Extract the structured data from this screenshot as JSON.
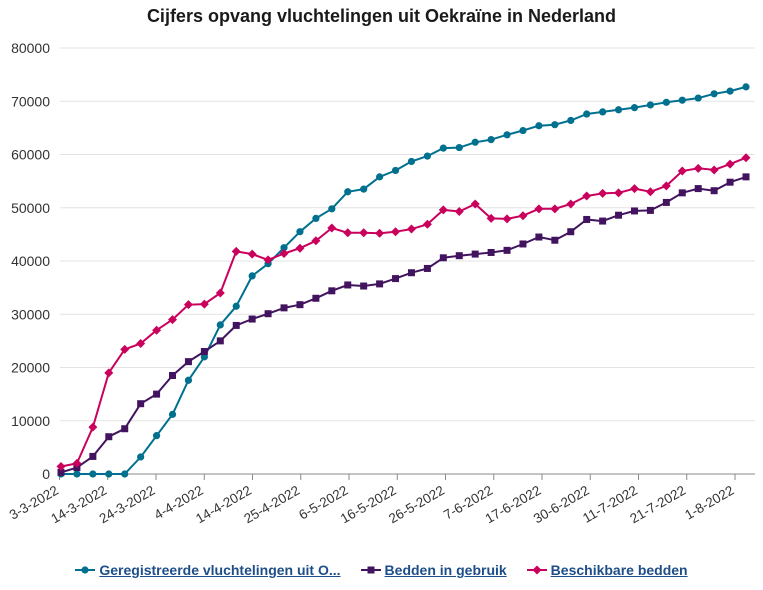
{
  "chart_data": {
    "type": "line",
    "title": "Cijfers opvang vluchtelingen uit Oekraïne in Nederland",
    "xlabel": "",
    "ylabel": "",
    "ylim": [
      0,
      80000
    ],
    "y_ticks": [
      0,
      10000,
      20000,
      30000,
      40000,
      50000,
      60000,
      70000,
      80000
    ],
    "x_tick_labels": [
      "3-3-2022",
      "14-3-2022",
      "24-3-2022",
      "4-4-2022",
      "14-4-2022",
      "25-4-2022",
      "6-5-2022",
      "16-5-2022",
      "26-5-2022",
      "7-6-2022",
      "17-6-2022",
      "30-6-2022",
      "11-7-2022",
      "21-7-2022",
      "1-8-2022"
    ],
    "grid": "horizontal",
    "legend_position": "bottom",
    "series": [
      {
        "name": "Geregistreerde vluchtelingen uit O...",
        "color": "#00708f",
        "marker": "circle",
        "values": [
          0,
          0,
          0,
          0,
          0,
          3200,
          7200,
          11200,
          17600,
          22000,
          28000,
          31500,
          37200,
          39500,
          42500,
          45500,
          48000,
          49800,
          53000,
          53500,
          55800,
          57000,
          58700,
          59700,
          61200,
          61300,
          62300,
          62800,
          63700,
          64500,
          65400,
          65600,
          66400,
          67600,
          68000,
          68400,
          68800,
          69300,
          69800,
          70200,
          70600,
          71400,
          71900,
          72700
        ]
      },
      {
        "name": "Bedden in gebruik",
        "color": "#42145f",
        "marker": "square",
        "values": [
          300,
          1200,
          3300,
          7000,
          8500,
          13200,
          15000,
          18500,
          21100,
          23000,
          25000,
          27900,
          29100,
          30100,
          31200,
          31800,
          33000,
          34400,
          35500,
          35300,
          35700,
          36700,
          37800,
          38600,
          40600,
          41000,
          41300,
          41600,
          42000,
          43200,
          44500,
          43900,
          45500,
          47800,
          47500,
          48600,
          49400,
          49500,
          51000,
          52800,
          53600,
          53200,
          54800,
          55800
        ]
      },
      {
        "name": "Beschikbare bedden",
        "color": "#ca005d",
        "marker": "diamond",
        "values": [
          1400,
          2000,
          8800,
          19000,
          23400,
          24500,
          27000,
          29000,
          31800,
          31900,
          34000,
          41800,
          41300,
          40200,
          41400,
          42400,
          43800,
          46200,
          45300,
          45300,
          45200,
          45500,
          46000,
          46900,
          49600,
          49300,
          50700,
          48000,
          47900,
          48500,
          49800,
          49800,
          50700,
          52200,
          52700,
          52800,
          53600,
          53000,
          54100,
          56900,
          57400,
          57100,
          58200,
          59400
        ]
      }
    ]
  }
}
